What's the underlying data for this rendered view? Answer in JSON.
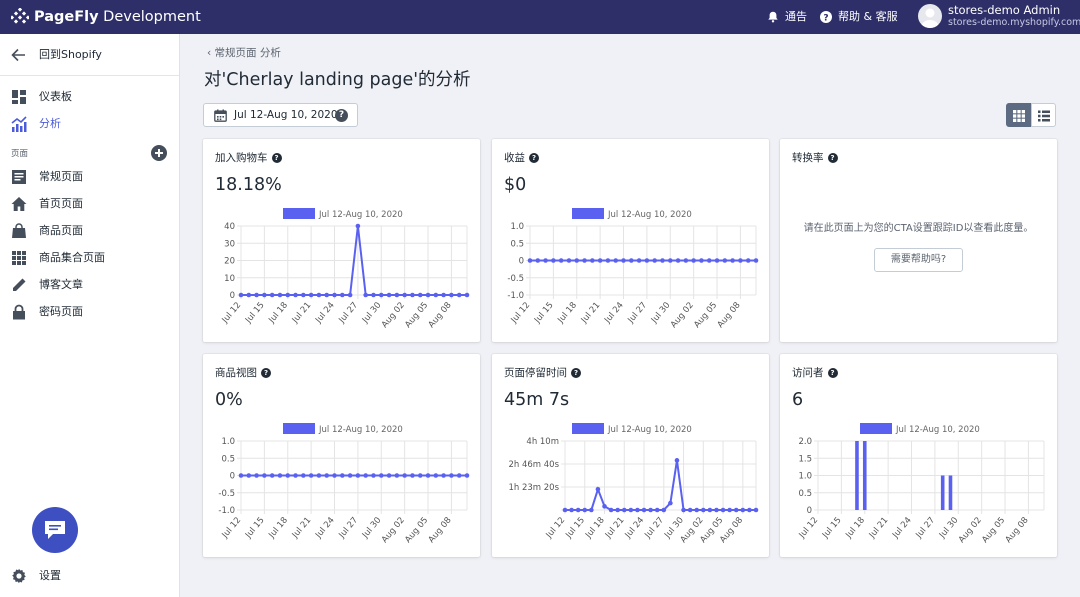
{
  "topbar": {
    "brand_bold": "PageFly",
    "brand_rest": " Development",
    "notice": "通告",
    "help": "帮助 & 客服",
    "admin_name": "stores-demo Admin",
    "admin_store": "stores-demo.myshopify.com",
    "icons": [
      "pagefly-logo-icon",
      "bell-icon",
      "question-circle-icon",
      "avatar"
    ]
  },
  "sidebar": {
    "back_label": "回到Shopify",
    "items": [
      {
        "label": "仪表板",
        "icon": "dashboard-icon"
      },
      {
        "label": "分析",
        "icon": "analytics-icon",
        "active": true
      }
    ],
    "section_label": "页面",
    "pages": [
      {
        "label": "常规页面",
        "icon": "regular-page-icon"
      },
      {
        "label": "首页页面",
        "icon": "home-icon"
      },
      {
        "label": "商品页面",
        "icon": "bag-icon"
      },
      {
        "label": "商品集合页面",
        "icon": "collection-grid-icon"
      },
      {
        "label": "博客文章",
        "icon": "pencil-icon"
      },
      {
        "label": "密码页面",
        "icon": "lock-icon"
      }
    ],
    "settings_label": "设置"
  },
  "main": {
    "breadcrumb": "常规页面 分析",
    "title": "对'Cherlay landing page'的分析",
    "date_range": "Jul 12-Aug 10, 2020",
    "accent_color": "#5a61f0"
  },
  "cards": [
    {
      "title": "加入购物车",
      "value": "18.18%"
    },
    {
      "title": "收益",
      "value": "$0"
    },
    {
      "title": "转换率",
      "message": "请在此页面上为您的CTA设置跟踪ID以查看此度量。",
      "help_button": "需要帮助吗?"
    },
    {
      "title": "商品视图",
      "value": "0%"
    },
    {
      "title": "页面停留时间",
      "value": "45m 7s"
    },
    {
      "title": "访问者",
      "value": "6"
    }
  ],
  "chart_data": [
    {
      "type": "line",
      "legend": "Jul 12-Aug 10, 2020",
      "x_ticks": [
        "Jul 12",
        "Jul 15",
        "Jul 18",
        "Jul 21",
        "Jul 24",
        "Jul 27",
        "Jul 30",
        "Aug 02",
        "Aug 05",
        "Aug 08"
      ],
      "y_ticks": [
        "0",
        "10",
        "20",
        "30",
        "40"
      ],
      "ylim": [
        0,
        40
      ],
      "values": [
        0,
        0,
        0,
        0,
        0,
        0,
        0,
        0,
        0,
        0,
        0,
        0,
        0,
        0,
        0,
        40,
        0,
        0,
        0,
        0,
        0,
        0,
        0,
        0,
        0,
        0,
        0,
        0,
        0,
        0
      ]
    },
    {
      "type": "line",
      "legend": "Jul 12-Aug 10, 2020",
      "x_ticks": [
        "Jul 12",
        "Jul 15",
        "Jul 18",
        "Jul 21",
        "Jul 24",
        "Jul 27",
        "Jul 30",
        "Aug 02",
        "Aug 05",
        "Aug 08"
      ],
      "y_ticks": [
        "-1.0",
        "-0.5",
        "0",
        "0.5",
        "1.0"
      ],
      "ylim": [
        -1,
        1
      ],
      "values": [
        0,
        0,
        0,
        0,
        0,
        0,
        0,
        0,
        0,
        0,
        0,
        0,
        0,
        0,
        0,
        0,
        0,
        0,
        0,
        0,
        0,
        0,
        0,
        0,
        0,
        0,
        0,
        0,
        0,
        0
      ]
    },
    null,
    {
      "type": "line",
      "legend": "Jul 12-Aug 10, 2020",
      "x_ticks": [
        "Jul 12",
        "Jul 15",
        "Jul 18",
        "Jul 21",
        "Jul 24",
        "Jul 27",
        "Jul 30",
        "Aug 02",
        "Aug 05",
        "Aug 08"
      ],
      "y_ticks": [
        "-1.0",
        "-0.5",
        "0",
        "0.5",
        "1.0"
      ],
      "ylim": [
        -1,
        1
      ],
      "values": [
        0,
        0,
        0,
        0,
        0,
        0,
        0,
        0,
        0,
        0,
        0,
        0,
        0,
        0,
        0,
        0,
        0,
        0,
        0,
        0,
        0,
        0,
        0,
        0,
        0,
        0,
        0,
        0,
        0,
        0
      ]
    },
    {
      "type": "line",
      "legend": "Jul 12-Aug 10, 2020",
      "x_ticks": [
        "Jul 12",
        "Jul 15",
        "Jul 18",
        "Jul 21",
        "Jul 24",
        "Jul 27",
        "Jul 30",
        "Aug 02",
        "Aug 05",
        "Aug 08"
      ],
      "y_ticks": [
        "",
        "1h 23m 20s",
        "2h 46m 40s",
        "4h 10m"
      ],
      "ylim": [
        0,
        15000
      ],
      "values": [
        0,
        0,
        0,
        0,
        0,
        4500,
        800,
        0,
        0,
        0,
        0,
        0,
        0,
        0,
        0,
        0,
        1500,
        10800,
        0,
        0,
        0,
        0,
        0,
        0,
        0,
        0,
        0,
        0,
        0,
        0
      ]
    },
    {
      "type": "bar",
      "legend": "Jul 12-Aug 10, 2020",
      "x_ticks": [
        "Jul 12",
        "Jul 15",
        "Jul 18",
        "Jul 21",
        "Jul 24",
        "Jul 27",
        "Jul 30",
        "Aug 02",
        "Aug 05",
        "Aug 08"
      ],
      "y_ticks": [
        "0",
        "0.5",
        "1.0",
        "1.5",
        "2.0"
      ],
      "ylim": [
        0,
        2
      ],
      "values": [
        0,
        0,
        0,
        0,
        0,
        2,
        2,
        0,
        0,
        0,
        0,
        0,
        0,
        0,
        0,
        0,
        1,
        1,
        0,
        0,
        0,
        0,
        0,
        0,
        0,
        0,
        0,
        0,
        0,
        0
      ]
    }
  ]
}
